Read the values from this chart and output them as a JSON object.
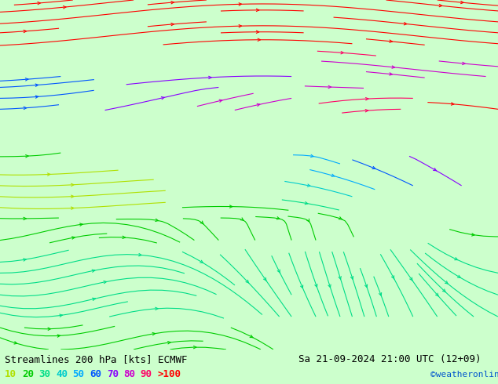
{
  "title_left": "Streamlines 200 hPa [kts] ECMWF",
  "title_right": "Sa 21-09-2024 21:00 UTC (12+09)",
  "credit": "©weatheronline.co.uk",
  "legend_values": [
    "10",
    "20",
    "30",
    "40",
    "50",
    "60",
    "70",
    "80",
    "90",
    ">100"
  ],
  "legend_colors": [
    "#b0e000",
    "#00cc00",
    "#00dd88",
    "#00cccc",
    "#00aaff",
    "#0055ff",
    "#8800ff",
    "#cc00cc",
    "#ff0066",
    "#ff0000"
  ],
  "background_color": "#ccffcc",
  "fig_width": 6.34,
  "fig_height": 4.9,
  "dpi": 100,
  "map_bg": "#c8ffc8",
  "title_fontsize": 9,
  "legend_fontsize": 9,
  "credit_color": "#0055cc",
  "title_color": "#000000"
}
